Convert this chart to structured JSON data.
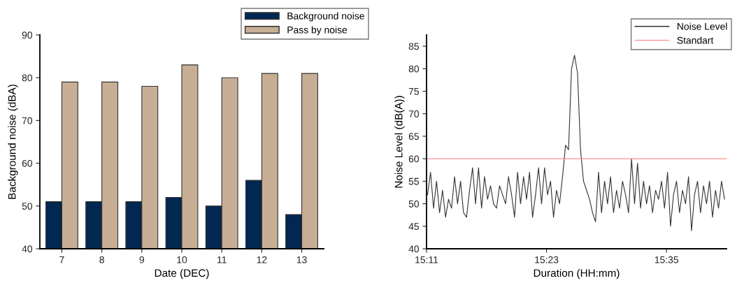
{
  "chart_data": [
    {
      "type": "bar",
      "xlabel": "Date (DEC)",
      "ylabel": "Background noise (dBA)",
      "categories": [
        "7",
        "8",
        "9",
        "10",
        "11",
        "12",
        "13"
      ],
      "series": [
        {
          "name": "Background noise",
          "color": "#022751",
          "values": [
            51,
            51,
            51,
            52,
            50,
            56,
            48
          ]
        },
        {
          "name": "Pass by noise",
          "color": "#c8ae94",
          "values": [
            79,
            79,
            78,
            83,
            80,
            81,
            81
          ]
        }
      ],
      "ylim": [
        40,
        90
      ],
      "yticks": [
        40,
        50,
        60,
        70,
        80,
        90
      ],
      "legend": "top right"
    },
    {
      "type": "line",
      "xlabel": "Duration (HH:mm)",
      "ylabel": "Noise Level (dB(A))",
      "x": [
        15.185,
        15.19,
        15.195,
        15.2,
        15.205,
        15.21,
        15.215,
        15.22,
        15.225,
        15.23,
        15.235,
        15.24,
        15.245,
        15.25,
        15.255,
        15.26,
        15.265,
        15.27,
        15.275,
        15.28,
        15.285,
        15.29,
        15.295,
        15.3,
        15.305,
        15.31,
        15.315,
        15.32,
        15.325,
        15.33,
        15.335,
        15.34,
        15.345,
        15.35,
        15.355,
        15.36,
        15.365,
        15.37,
        15.375,
        15.38,
        15.385,
        15.39,
        15.395,
        15.4,
        15.405,
        15.41,
        15.415,
        15.42,
        15.425,
        15.43,
        15.435,
        15.44,
        15.445,
        15.45,
        15.455,
        15.46,
        15.465,
        15.47,
        15.475,
        15.48,
        15.485,
        15.49,
        15.495,
        15.5,
        15.505,
        15.51,
        15.515,
        15.52,
        15.525,
        15.53,
        15.535,
        15.54,
        15.545,
        15.55,
        15.555,
        15.56,
        15.565,
        15.57,
        15.575,
        15.58,
        15.585,
        15.59,
        15.595,
        15.6,
        15.605,
        15.61,
        15.615,
        15.62,
        15.625,
        15.63,
        15.635,
        15.64,
        15.645,
        15.65,
        15.655,
        15.66,
        15.665,
        15.67,
        15.675,
        15.68
      ],
      "series": [
        {
          "name": "Noise Level",
          "color": "#333333",
          "values": [
            52,
            57,
            49,
            55,
            48,
            53,
            47,
            51,
            49,
            56,
            50,
            55,
            48,
            47,
            53,
            58,
            50,
            58,
            49,
            56,
            51,
            54,
            50,
            49,
            54,
            52,
            50,
            56,
            52,
            47,
            57,
            50,
            56,
            51,
            57,
            47,
            52,
            58,
            50,
            58,
            52,
            55,
            47,
            53,
            50,
            56,
            63,
            62,
            80,
            83,
            79,
            62,
            55,
            53,
            51,
            48,
            46,
            57,
            48,
            55,
            50,
            56,
            48,
            53,
            49,
            55,
            52,
            48,
            60,
            50,
            59,
            49,
            55,
            50,
            54,
            48,
            53,
            51,
            55,
            49,
            57,
            45,
            52,
            55,
            48,
            53,
            50,
            56,
            44,
            52,
            55,
            48,
            54,
            50,
            55,
            47,
            53,
            49,
            55,
            51
          ]
        }
      ],
      "ref_lines": [
        {
          "axis": "y",
          "value": 60,
          "label": "Standart",
          "color": "#ff8c8c"
        }
      ],
      "xlim": [
        15.1833,
        15.6833
      ],
      "xticks": [
        {
          "value": 15.1833,
          "label": "15:11"
        },
        {
          "value": 15.3833,
          "label": "15:23"
        },
        {
          "value": 15.5833,
          "label": "15:35"
        }
      ],
      "ylim": [
        40,
        87.5
      ],
      "yticks": [
        40,
        45,
        50,
        55,
        60,
        65,
        70,
        75,
        80,
        85
      ],
      "legend": "top right"
    }
  ]
}
